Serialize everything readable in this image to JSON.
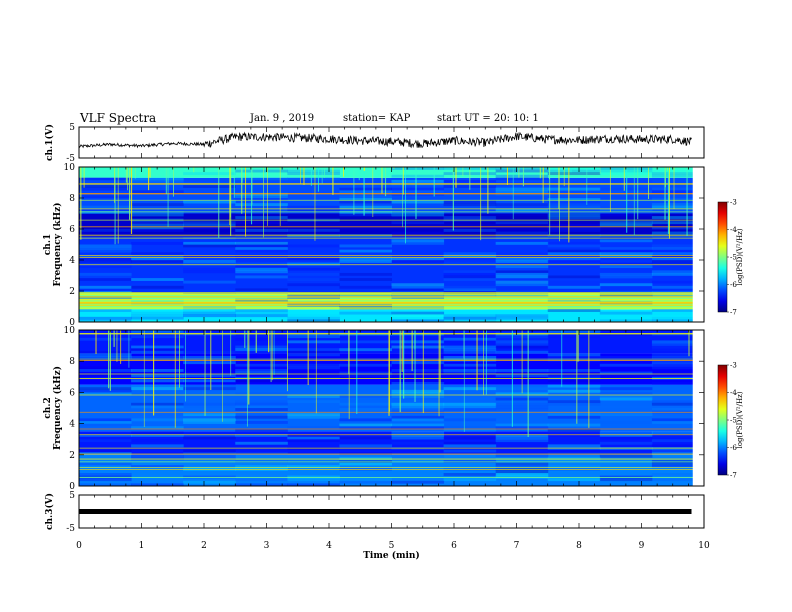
{
  "header": {
    "title": "VLF Spectra",
    "date": "Jan. 9 , 2019",
    "station": "station= KAP",
    "start": "start UT = 20: 10: 1"
  },
  "chart_data": [
    {
      "type": "line",
      "ylabel": "ch.1(V)",
      "ylim": [
        -5,
        5
      ],
      "y_ticks": [
        "5",
        "-5"
      ],
      "xlim": [
        0,
        10
      ],
      "series": [
        {
          "x": [
            0,
            0.5,
            1,
            1.5,
            2,
            2.5,
            3,
            3.5,
            4,
            4.5,
            5,
            5.5,
            6,
            6.5,
            7,
            7.5,
            8,
            8.5,
            9,
            9.5,
            9.8
          ],
          "values": [
            -1.3,
            -0.6,
            -1.1,
            -0.3,
            -0.6,
            1.8,
            1.8,
            1.5,
            1.2,
            0.6,
            0.3,
            -0.4,
            0.6,
            -0.1,
            2.0,
            1.0,
            0.8,
            1.3,
            1.0,
            1.1,
            0.2
          ]
        }
      ]
    },
    {
      "type": "heatmap",
      "ylabel": "ch.1 Frequency (kHz)",
      "ylim": [
        0,
        10
      ],
      "y_ticks": [
        "0",
        "2",
        "4",
        "6",
        "8",
        "10"
      ],
      "xlim": [
        0,
        10
      ],
      "colorbar": {
        "label": "log(PSD)(V²/Hz)",
        "range": [
          -7,
          -3
        ],
        "ticks": [
          "-3",
          "-4",
          "-5",
          "-6",
          "-7"
        ]
      },
      "bands": [
        {
          "f": [
            0,
            0.8
          ],
          "level": -5.6
        },
        {
          "f": [
            0.8,
            1.9
          ],
          "level": -5.0
        },
        {
          "f": [
            1.9,
            5.5
          ],
          "level": -6.3
        },
        {
          "f": [
            5.5,
            7.0
          ],
          "level": -6.7
        },
        {
          "f": [
            7.0,
            9.3
          ],
          "level": -6.2
        },
        {
          "f": [
            9.3,
            10
          ],
          "level": -5.3
        }
      ]
    },
    {
      "type": "heatmap",
      "ylabel": "ch.2 Frequency (kHz)",
      "ylim": [
        0,
        10
      ],
      "y_ticks": [
        "0",
        "2",
        "4",
        "6",
        "8",
        "10"
      ],
      "xlim": [
        0,
        10
      ],
      "colorbar": {
        "label": "log(PSD)(V²/Hz)",
        "range": [
          -7,
          -3
        ],
        "ticks": [
          "-3",
          "-4",
          "-5",
          "-6",
          "-7"
        ]
      },
      "bands": [
        {
          "f": [
            0,
            2.0
          ],
          "level": -6.0
        },
        {
          "f": [
            2.0,
            3.5
          ],
          "level": -6.4
        },
        {
          "f": [
            3.5,
            6.5
          ],
          "level": -6.1
        },
        {
          "f": [
            6.5,
            8.5
          ],
          "level": -6.5
        },
        {
          "f": [
            8.5,
            10
          ],
          "level": -6.4
        }
      ]
    },
    {
      "type": "line",
      "ylabel": "ch.3(V)",
      "ylim": [
        -5,
        5
      ],
      "y_ticks": [
        "5",
        "-5"
      ],
      "xlim": [
        0,
        10
      ],
      "xlabel": "Time (min)",
      "x_ticks": [
        "0",
        "1",
        "2",
        "3",
        "4",
        "5",
        "6",
        "7",
        "8",
        "9",
        "10"
      ],
      "series": [
        {
          "x": [
            0,
            9.8
          ],
          "values": [
            0,
            0
          ]
        }
      ]
    }
  ]
}
